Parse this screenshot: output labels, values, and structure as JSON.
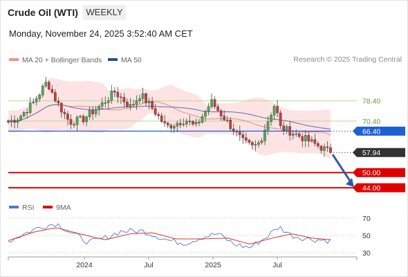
{
  "header": {
    "title": "Crude Oil (WTI)",
    "timeframe": "WEEKLY",
    "datetime": "Monday, November 24, 2025 3:52:40 AM CET"
  },
  "legend": {
    "ma20_bb": "MA 20 + Bollinger Bands",
    "ma50": "MA 50",
    "credit": "Research © 2025 Trading Central"
  },
  "rsi_legend": {
    "rsi": "RSI",
    "ma9": "9MA"
  },
  "colors": {
    "up": "#4caf50",
    "down": "#d23a3a",
    "ma20": "#e98a8a",
    "ma50": "#5b6fb0",
    "bands": "#fde3e3",
    "resistance": "#b8dc8c",
    "pivot": "#1f5fd6",
    "support": "#e00000",
    "current": "#333333",
    "arrow": "#2a5ca8",
    "rsi": "#5b85d8",
    "rsi_ma": "#e03030"
  },
  "chart_data": [
    {
      "type": "candlestick",
      "title": "Crude Oil (WTI)",
      "timeframe": "weekly",
      "x_labels": [
        "2024",
        "Jul",
        "2025",
        "Jul"
      ],
      "ylim": [
        41,
        89
      ],
      "levels": [
        {
          "label": "78.40",
          "value": 78.4,
          "kind": "resistance"
        },
        {
          "label": "70.40",
          "value": 70.4,
          "kind": "resistance"
        },
        {
          "label": "66.40",
          "value": 66.4,
          "kind": "pivot"
        },
        {
          "label": "57.94",
          "value": 57.94,
          "kind": "current"
        },
        {
          "label": "50.00",
          "value": 50.0,
          "kind": "support"
        },
        {
          "label": "44.00",
          "value": 44.0,
          "kind": "support"
        }
      ],
      "forecast_arrow": {
        "from": 58.0,
        "to": 44.0
      },
      "anchors": [
        {
          "x": 0.0,
          "close": 70
        },
        {
          "x": 0.035,
          "close": 72
        },
        {
          "x": 0.08,
          "close": 78
        },
        {
          "x": 0.12,
          "close": 86
        },
        {
          "x": 0.15,
          "close": 78
        },
        {
          "x": 0.19,
          "close": 70
        },
        {
          "x": 0.23,
          "close": 71
        },
        {
          "x": 0.29,
          "close": 77
        },
        {
          "x": 0.33,
          "close": 82
        },
        {
          "x": 0.38,
          "close": 76
        },
        {
          "x": 0.41,
          "close": 81
        },
        {
          "x": 0.45,
          "close": 75
        },
        {
          "x": 0.49,
          "close": 68
        },
        {
          "x": 0.55,
          "close": 71
        },
        {
          "x": 0.58,
          "close": 68
        },
        {
          "x": 0.63,
          "close": 78
        },
        {
          "x": 0.68,
          "close": 70
        },
        {
          "x": 0.73,
          "close": 62
        },
        {
          "x": 0.76,
          "close": 60
        },
        {
          "x": 0.78,
          "close": 62
        },
        {
          "x": 0.81,
          "close": 72
        },
        {
          "x": 0.83,
          "close": 78
        },
        {
          "x": 0.84,
          "close": 68
        },
        {
          "x": 0.88,
          "close": 66
        },
        {
          "x": 0.94,
          "close": 62
        },
        {
          "x": 1.0,
          "close": 58
        }
      ]
    },
    {
      "type": "line",
      "title": "RSI",
      "ylim": [
        26,
        74
      ],
      "y_ticks": [
        70,
        50,
        30
      ],
      "series": [
        {
          "name": "RSI",
          "anchors": [
            [
              0.0,
              43
            ],
            [
              0.05,
              52
            ],
            [
              0.1,
              60
            ],
            [
              0.15,
              64
            ],
            [
              0.2,
              52
            ],
            [
              0.25,
              42
            ],
            [
              0.3,
              47
            ],
            [
              0.35,
              55
            ],
            [
              0.42,
              55
            ],
            [
              0.5,
              44
            ],
            [
              0.55,
              41
            ],
            [
              0.6,
              48
            ],
            [
              0.65,
              52
            ],
            [
              0.7,
              40
            ],
            [
              0.75,
              36
            ],
            [
              0.8,
              48
            ],
            [
              0.84,
              60
            ],
            [
              0.88,
              50
            ],
            [
              0.93,
              46
            ],
            [
              1.0,
              44
            ]
          ]
        },
        {
          "name": "9MA",
          "anchors": [
            [
              0.0,
              44
            ],
            [
              0.08,
              54
            ],
            [
              0.15,
              59
            ],
            [
              0.22,
              52
            ],
            [
              0.3,
              45
            ],
            [
              0.38,
              52
            ],
            [
              0.45,
              53
            ],
            [
              0.52,
              46
            ],
            [
              0.6,
              46
            ],
            [
              0.68,
              47
            ],
            [
              0.75,
              40
            ],
            [
              0.82,
              47
            ],
            [
              0.88,
              52
            ],
            [
              0.94,
              47
            ],
            [
              1.0,
              45
            ]
          ]
        }
      ]
    }
  ]
}
